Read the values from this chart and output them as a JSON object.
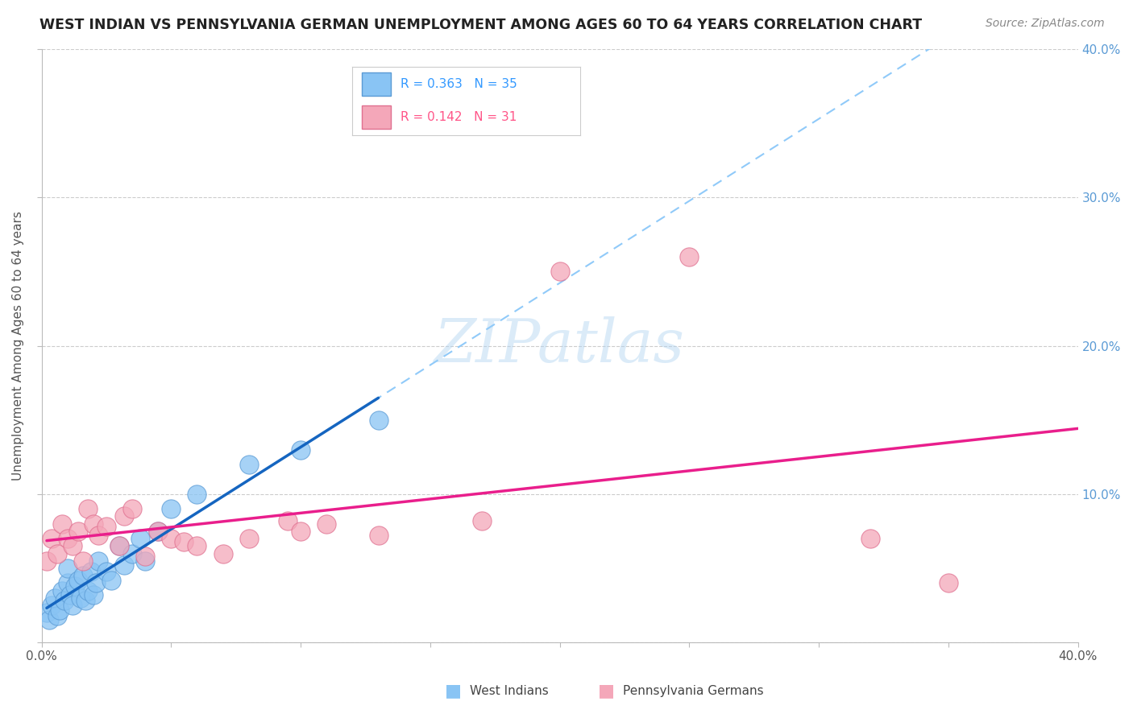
{
  "title": "WEST INDIAN VS PENNSYLVANIA GERMAN UNEMPLOYMENT AMONG AGES 60 TO 64 YEARS CORRELATION CHART",
  "source": "Source: ZipAtlas.com",
  "ylabel": "Unemployment Among Ages 60 to 64 years",
  "xlim": [
    0.0,
    0.4
  ],
  "ylim": [
    0.0,
    0.4
  ],
  "grid_color": "#cccccc",
  "background_color": "#ffffff",
  "west_indians_color": "#89c4f4",
  "pennsylvania_german_color": "#f4a7b9",
  "west_indians_line_color": "#1565C0",
  "pennsylvania_german_line_color": "#E91E8C",
  "dashed_line_color": "#90CAF9",
  "wi_x": [
    0.002,
    0.003,
    0.004,
    0.005,
    0.006,
    0.007,
    0.008,
    0.009,
    0.01,
    0.01,
    0.011,
    0.012,
    0.013,
    0.014,
    0.015,
    0.016,
    0.017,
    0.018,
    0.019,
    0.02,
    0.021,
    0.022,
    0.025,
    0.027,
    0.03,
    0.032,
    0.035,
    0.038,
    0.04,
    0.045,
    0.05,
    0.06,
    0.08,
    0.1,
    0.13
  ],
  "wi_y": [
    0.02,
    0.015,
    0.025,
    0.03,
    0.018,
    0.022,
    0.035,
    0.028,
    0.04,
    0.05,
    0.032,
    0.025,
    0.038,
    0.042,
    0.03,
    0.045,
    0.028,
    0.035,
    0.048,
    0.032,
    0.04,
    0.055,
    0.048,
    0.042,
    0.065,
    0.052,
    0.06,
    0.07,
    0.055,
    0.075,
    0.09,
    0.1,
    0.12,
    0.13,
    0.15
  ],
  "pa_x": [
    0.002,
    0.004,
    0.006,
    0.008,
    0.01,
    0.012,
    0.014,
    0.016,
    0.018,
    0.02,
    0.022,
    0.025,
    0.03,
    0.032,
    0.035,
    0.04,
    0.045,
    0.05,
    0.055,
    0.06,
    0.07,
    0.08,
    0.095,
    0.1,
    0.11,
    0.13,
    0.17,
    0.2,
    0.25,
    0.32,
    0.35
  ],
  "pa_y": [
    0.055,
    0.07,
    0.06,
    0.08,
    0.07,
    0.065,
    0.075,
    0.055,
    0.09,
    0.08,
    0.072,
    0.078,
    0.065,
    0.085,
    0.09,
    0.058,
    0.075,
    0.07,
    0.068,
    0.065,
    0.06,
    0.07,
    0.082,
    0.075,
    0.08,
    0.072,
    0.082,
    0.25,
    0.26,
    0.07,
    0.04
  ],
  "wi_r": 0.363,
  "wi_n": 35,
  "pa_r": 0.142,
  "pa_n": 31
}
